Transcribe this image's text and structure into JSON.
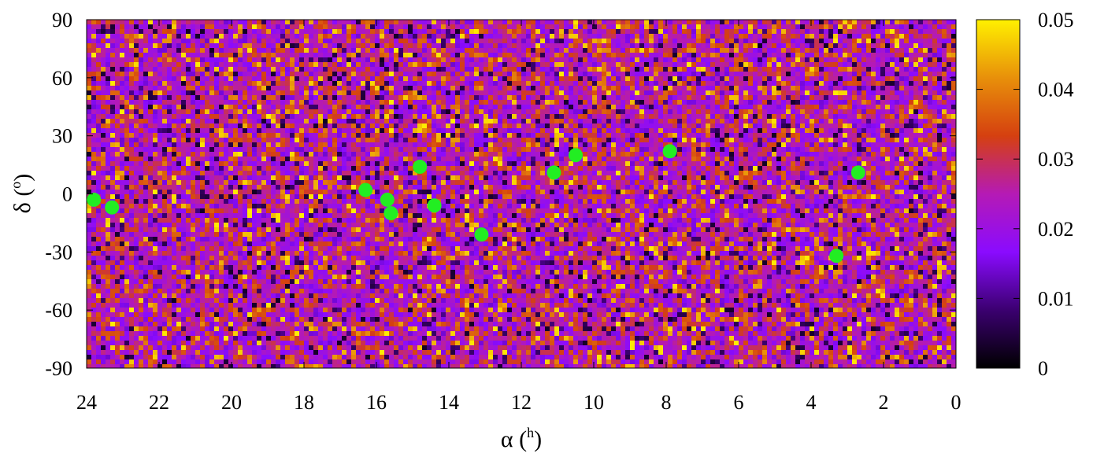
{
  "chart_data": {
    "type": "heatmap",
    "xlabel": "α (h)",
    "ylabel": "δ (o)",
    "xlim": [
      24,
      0
    ],
    "ylim": [
      -90,
      90
    ],
    "x_ticks": [
      "24",
      "22",
      "20",
      "18",
      "16",
      "14",
      "12",
      "10",
      "8",
      "6",
      "4",
      "2",
      "0"
    ],
    "y_ticks": [
      "90",
      "60",
      "30",
      "0",
      "-30",
      "-60",
      "-90"
    ],
    "colorbar": {
      "range": [
        0,
        0.05
      ],
      "ticks": [
        "0",
        "0.01",
        "0.02",
        "0.03",
        "0.04",
        "0.05"
      ],
      "stops": [
        "#000000",
        "#3b0070",
        "#8a0bff",
        "#b51ab5",
        "#d54010",
        "#e8900a",
        "#fff000"
      ]
    },
    "heatmap": {
      "value_range": [
        0,
        0.05
      ],
      "description_values": "per-pixel values mostly between 0.01 and 0.04 (noisy sky map)"
    },
    "markers": {
      "color": "#22ee22",
      "points": [
        {
          "x": 23.8,
          "y": -3
        },
        {
          "x": 23.3,
          "y": -7
        },
        {
          "x": 16.3,
          "y": 2
        },
        {
          "x": 15.7,
          "y": -3
        },
        {
          "x": 15.6,
          "y": -10
        },
        {
          "x": 14.8,
          "y": 14
        },
        {
          "x": 14.4,
          "y": -6
        },
        {
          "x": 13.1,
          "y": -21
        },
        {
          "x": 11.1,
          "y": 11
        },
        {
          "x": 10.5,
          "y": 20
        },
        {
          "x": 7.9,
          "y": 22
        },
        {
          "x": 3.3,
          "y": -32
        },
        {
          "x": 2.7,
          "y": 11
        }
      ]
    }
  }
}
